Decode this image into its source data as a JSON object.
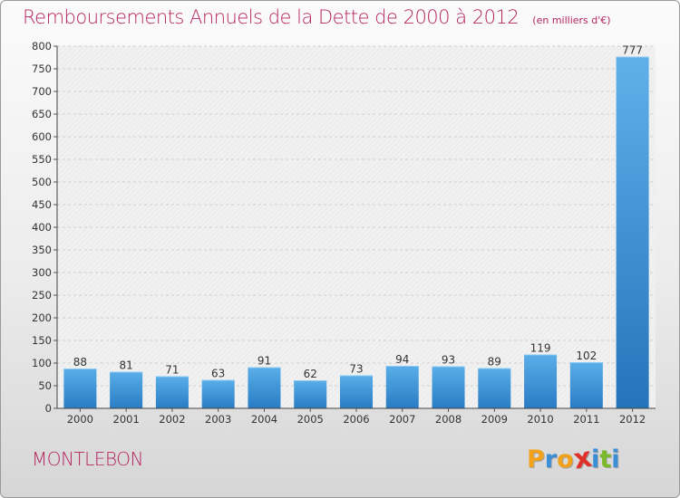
{
  "chart_data": {
    "type": "bar",
    "title": "Remboursements Annuels de la Dette de 2000 à 2012",
    "subtitle": "(en milliers d'€)",
    "categories": [
      "2000",
      "2001",
      "2002",
      "2003",
      "2004",
      "2005",
      "2006",
      "2007",
      "2008",
      "2009",
      "2010",
      "2011",
      "2012"
    ],
    "values": [
      88,
      81,
      71,
      63,
      91,
      62,
      73,
      94,
      93,
      89,
      119,
      102,
      777
    ],
    "ylim": [
      0,
      800
    ],
    "yticks": [
      0,
      50,
      100,
      150,
      200,
      250,
      300,
      350,
      400,
      450,
      500,
      550,
      600,
      650,
      700,
      750,
      800
    ],
    "xlabel": "",
    "ylabel": "",
    "grid": true,
    "bar_color": "#3a8fd6"
  },
  "footer": {
    "city": "MONTLEBON",
    "logo_letters": [
      "P",
      "r",
      "o",
      "x",
      "i",
      "t",
      "i"
    ],
    "logo_colors": [
      "#f2a21a",
      "#3a8fd6",
      "#f2a21a",
      "#e0302a",
      "#3a8fd6",
      "#7ab929",
      "#3a8fd6"
    ]
  }
}
